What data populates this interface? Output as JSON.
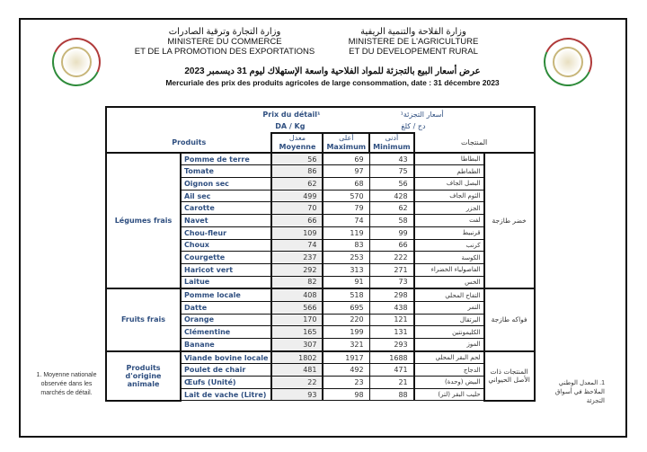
{
  "header": {
    "commerce_ar": "وزارة التجارة وترقية الصادرات",
    "commerce_fr_1": "MINISTERE DU COMMERCE",
    "commerce_fr_2": "ET DE LA PROMOTION DES EXPORTATIONS",
    "agri_ar": "وزارة الفلاحة والتنمية الريفية",
    "agri_fr_1": "MINISTERE DE L'AGRICULTURE",
    "agri_fr_2": "ET DU DEVELOPEMENT RURAL",
    "title_ar": "عرض أسعار البيع بالتجزئة للمواد الفلاحية واسعة الإستهلاك ليوم 31 ديسمبر 2023",
    "title_fr": "Mercuriale des prix des produits agricoles de large consommation, date  : 31 décembre 2023"
  },
  "table": {
    "prix_fr": "Prix du détail¹",
    "unit_fr": "DA / Kg",
    "prix_ar": "أسعار التجزئة¹",
    "unit_ar": "دج / كلغ",
    "col_produits": "Produits",
    "col_produits_ar": "المنتجات",
    "col_moy_ar": "معدل",
    "col_moy": "Moyenne",
    "col_max_ar": "أعلى",
    "col_max": "Maximum",
    "col_min_ar": "أدنى",
    "col_min": "Minimum",
    "groups": [
      {
        "fr": "Légumes frais",
        "ar": "خضر طازجة",
        "rows": [
          {
            "fr": "Pomme de terre",
            "ar": "البطاطا",
            "moy": "56",
            "max": "69",
            "min": "43"
          },
          {
            "fr": "Tomate",
            "ar": "الطماطم",
            "moy": "86",
            "max": "97",
            "min": "75"
          },
          {
            "fr": "Oignon sec",
            "ar": "البصل الجاف",
            "moy": "62",
            "max": "68",
            "min": "56"
          },
          {
            "fr": "Ail sec",
            "ar": "الثوم الجاف",
            "moy": "499",
            "max": "570",
            "min": "428"
          },
          {
            "fr": "Carotte",
            "ar": "الجزر",
            "moy": "70",
            "max": "79",
            "min": "62"
          },
          {
            "fr": "Navet",
            "ar": "لفت",
            "moy": "66",
            "max": "74",
            "min": "58"
          },
          {
            "fr": "Chou-fleur",
            "ar": "قرنبيط",
            "moy": "109",
            "max": "119",
            "min": "99"
          },
          {
            "fr": "Choux",
            "ar": "كرنب",
            "moy": "74",
            "max": "83",
            "min": "66"
          },
          {
            "fr": "Courgette",
            "ar": "الكوسة",
            "moy": "237",
            "max": "253",
            "min": "222"
          },
          {
            "fr": "Haricot vert",
            "ar": "الفاصولياء الخضراء",
            "moy": "292",
            "max": "313",
            "min": "271"
          },
          {
            "fr": "Laitue",
            "ar": "الخس",
            "moy": "82",
            "max": "91",
            "min": "73"
          }
        ]
      },
      {
        "fr": "Fruits frais",
        "ar": "فواكه طازجة",
        "rows": [
          {
            "fr": "Pomme locale",
            "ar": "التفاح المحلي",
            "moy": "408",
            "max": "518",
            "min": "298"
          },
          {
            "fr": "Datte",
            "ar": "التمر",
            "moy": "566",
            "max": "695",
            "min": "438"
          },
          {
            "fr": "Orange",
            "ar": "البرتقال",
            "moy": "170",
            "max": "220",
            "min": "121"
          },
          {
            "fr": "Clémentine",
            "ar": "الكليمونتين",
            "moy": "165",
            "max": "199",
            "min": "131"
          },
          {
            "fr": "Banane",
            "ar": "الموز",
            "moy": "307",
            "max": "321",
            "min": "293"
          }
        ]
      },
      {
        "fr": "Produits d'origine animale",
        "ar": "المنتجات ذات الأصل الحيواني",
        "rows": [
          {
            "fr": "Viande bovine locale",
            "ar": "لحم البقر المحلي",
            "moy": "1802",
            "max": "1917",
            "min": "1688"
          },
          {
            "fr": "Poulet de chair",
            "ar": "الدجاج",
            "moy": "481",
            "max": "492",
            "min": "471"
          },
          {
            "fr": "Œufs (Unité)",
            "ar": "البيض (وحدة)",
            "moy": "22",
            "max": "23",
            "min": "21"
          },
          {
            "fr": "Lait de vache (Litre)",
            "ar": "حليب البقر (لتر)",
            "moy": "93",
            "max": "98",
            "min": "88"
          }
        ]
      }
    ]
  },
  "footnotes": {
    "fr": "1. Moyenne nationale observée dans les marchés de détail.",
    "ar": "1. المعدل الوطني الملاحظ في أسواق التجزئة"
  }
}
